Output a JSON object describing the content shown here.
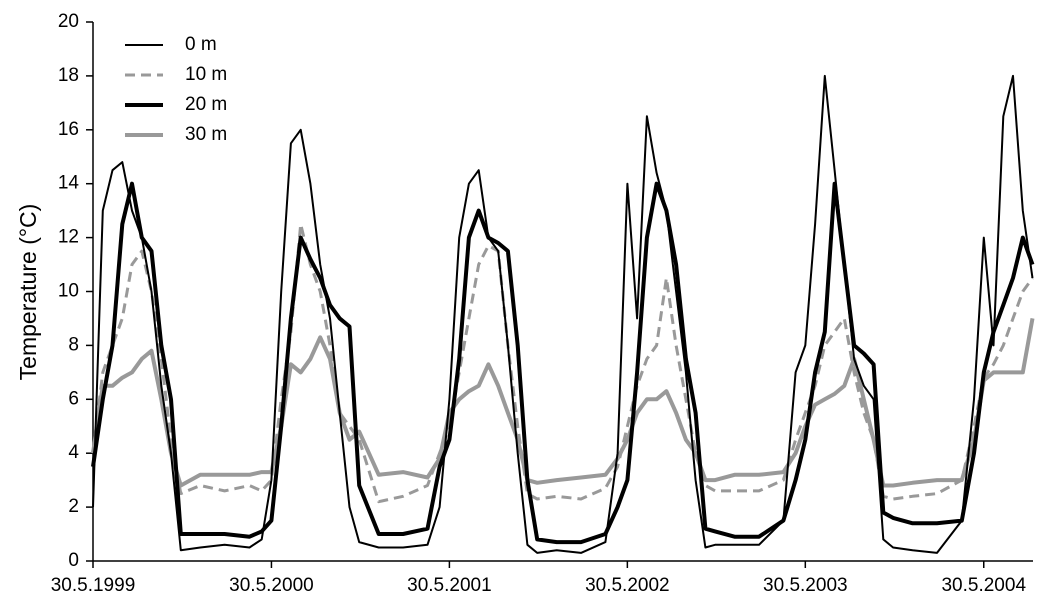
{
  "chart_data": {
    "type": "line",
    "y_label": "Temperature (°C)",
    "x": [
      "1999-05-30",
      "1999-06-19",
      "1999-07-09",
      "1999-07-29",
      "1999-08-18",
      "1999-09-07",
      "1999-09-27",
      "1999-10-17",
      "1999-11-06",
      "1999-11-26",
      "2000-01-05",
      "2000-02-24",
      "2000-04-15",
      "2000-05-10",
      "2000-05-30",
      "2000-06-19",
      "2000-07-09",
      "2000-07-29",
      "2000-08-18",
      "2000-09-07",
      "2000-09-27",
      "2000-10-17",
      "2000-11-06",
      "2000-11-26",
      "2001-01-05",
      "2001-02-24",
      "2001-04-15",
      "2001-05-10",
      "2001-05-30",
      "2001-06-19",
      "2001-07-09",
      "2001-07-29",
      "2001-08-18",
      "2001-09-07",
      "2001-09-27",
      "2001-10-17",
      "2001-11-06",
      "2001-11-26",
      "2002-01-05",
      "2002-02-24",
      "2002-04-15",
      "2002-05-10",
      "2002-05-30",
      "2002-06-19",
      "2002-07-09",
      "2002-07-29",
      "2002-08-18",
      "2002-09-07",
      "2002-09-27",
      "2002-10-17",
      "2002-11-06",
      "2002-11-26",
      "2003-01-05",
      "2003-02-24",
      "2003-04-15",
      "2003-05-10",
      "2003-05-30",
      "2003-06-19",
      "2003-07-09",
      "2003-07-29",
      "2003-08-18",
      "2003-09-07",
      "2003-09-27",
      "2003-10-17",
      "2003-11-06",
      "2003-11-26",
      "2004-01-05",
      "2004-02-24",
      "2004-04-15",
      "2004-05-10",
      "2004-05-30",
      "2004-06-19",
      "2004-07-09",
      "2004-07-29",
      "2004-08-18",
      "2004-09-07"
    ],
    "series": [
      {
        "name": "0 m",
        "color": "#000000",
        "width": 2,
        "dashed": false,
        "values": [
          2,
          13,
          14.5,
          14.8,
          13,
          12,
          10,
          6.5,
          4,
          0.4,
          0.5,
          0.6,
          0.5,
          0.8,
          3,
          10,
          15.5,
          16,
          14,
          11,
          9,
          5.5,
          2,
          0.7,
          0.5,
          0.5,
          0.6,
          2,
          6,
          12,
          14,
          14.5,
          12,
          11.5,
          8,
          4,
          0.6,
          0.3,
          0.4,
          0.3,
          0.7,
          4,
          14,
          9,
          16.5,
          14.4,
          13,
          10,
          7,
          3,
          0.5,
          0.6,
          0.6,
          0.6,
          1.5,
          7,
          8,
          12.5,
          18,
          14.5,
          11,
          7.5,
          6.5,
          6,
          0.8,
          0.5,
          0.4,
          0.3,
          1.5,
          6,
          12,
          8,
          16.5,
          18,
          13,
          10.5
        ]
      },
      {
        "name": "10 m",
        "color": "#999999",
        "width": 3,
        "dashed": true,
        "values": [
          4,
          7,
          8,
          9,
          11,
          11.5,
          10,
          7.5,
          4.5,
          2.5,
          2.8,
          2.6,
          2.8,
          2.6,
          3,
          6,
          8.5,
          12.5,
          11,
          10,
          8,
          5.5,
          5,
          4.5,
          2.2,
          2.4,
          2.8,
          4,
          5,
          7,
          9,
          11,
          11.7,
          11.5,
          8,
          5,
          2.5,
          2.3,
          2.4,
          2.3,
          2.7,
          3.5,
          5,
          6.5,
          7.5,
          8,
          10.5,
          8,
          6,
          4,
          2.8,
          2.6,
          2.6,
          2.6,
          3,
          4.5,
          5.5,
          6.5,
          8,
          8.5,
          9,
          7,
          5.5,
          4.5,
          2.4,
          2.3,
          2.4,
          2.5,
          3,
          5,
          6.8,
          7.3,
          8,
          9,
          10,
          10.5
        ]
      },
      {
        "name": "20 m",
        "color": "#000000",
        "width": 4,
        "dashed": false,
        "values": [
          3.5,
          6,
          8,
          12.5,
          14,
          12,
          11.5,
          8,
          6,
          1,
          1,
          1,
          0.9,
          1.1,
          1.5,
          5,
          9,
          12,
          11.2,
          10.5,
          9.5,
          9,
          8.7,
          2.8,
          1,
          1,
          1.2,
          3.5,
          4.5,
          7.5,
          12,
          13,
          12,
          11.8,
          11.5,
          8,
          3,
          0.8,
          0.7,
          0.7,
          1,
          2,
          3,
          7,
          12,
          14,
          13,
          11,
          7.5,
          5.5,
          1.2,
          1.1,
          0.9,
          0.9,
          1.5,
          3,
          4.5,
          7,
          8.5,
          14,
          11,
          8,
          7.7,
          7.3,
          1.8,
          1.6,
          1.4,
          1.4,
          1.5,
          4,
          7,
          8.5,
          9.5,
          10.5,
          12,
          11
        ]
      },
      {
        "name": "30 m",
        "color": "#999999",
        "width": 4,
        "dashed": false,
        "values": [
          4,
          6.5,
          6.5,
          6.8,
          7,
          7.5,
          7.8,
          6,
          4,
          2.8,
          3.2,
          3.2,
          3.2,
          3.3,
          3.3,
          5,
          7.3,
          7,
          7.5,
          8.3,
          7.5,
          5.5,
          4.5,
          4.8,
          3.2,
          3.3,
          3.1,
          3.8,
          5.5,
          6,
          6.3,
          6.5,
          7.3,
          6.5,
          5.5,
          4.5,
          3,
          2.9,
          3,
          3.1,
          3.2,
          3.8,
          4.5,
          5.5,
          6,
          6,
          6.3,
          5.5,
          4.5,
          4,
          3,
          3,
          3.2,
          3.2,
          3.3,
          4,
          5,
          5.8,
          6,
          6.2,
          6.5,
          7.5,
          6,
          4.5,
          2.8,
          2.8,
          2.9,
          3,
          3,
          4.5,
          6.7,
          7,
          7,
          7,
          7,
          9
        ]
      }
    ],
    "xlim": [
      "1999-05-30",
      "2004-09-08"
    ],
    "xticks": [
      {
        "value": "1999-05-30",
        "label": "30.5.1999"
      },
      {
        "value": "2000-05-30",
        "label": "30.5.2000"
      },
      {
        "value": "2001-05-30",
        "label": "30.5.2001"
      },
      {
        "value": "2002-05-30",
        "label": "30.5.2002"
      },
      {
        "value": "2003-05-30",
        "label": "30.5.2003"
      },
      {
        "value": "2004-05-30",
        "label": "30.5.2004"
      }
    ],
    "ylim": [
      0,
      20
    ],
    "yticks": [
      0,
      2,
      4,
      6,
      8,
      10,
      12,
      14,
      16,
      18,
      20
    ],
    "grid": false,
    "legend": "top-left"
  }
}
